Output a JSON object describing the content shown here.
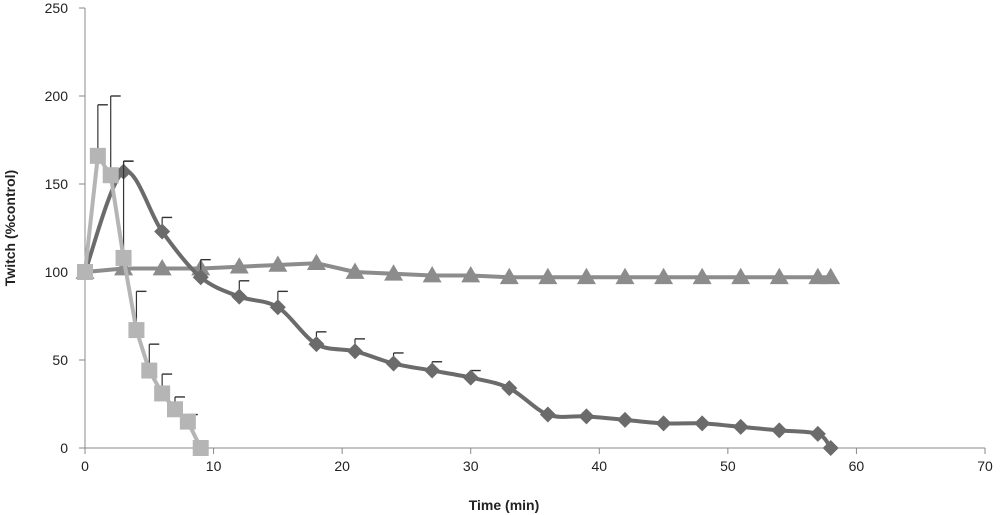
{
  "chart_data": {
    "type": "line",
    "title": "",
    "xlabel": "Time (min)",
    "ylabel": "Twitch (%control)",
    "xlim": [
      0,
      70
    ],
    "ylim": [
      0,
      250
    ],
    "x_ticks": [
      0,
      10,
      20,
      30,
      40,
      50,
      60,
      70
    ],
    "y_ticks": [
      0,
      50,
      100,
      150,
      200,
      250
    ],
    "grid": false,
    "legend": "none",
    "series": [
      {
        "marker": "diamond",
        "color": "#6b6b6b",
        "smooth": true,
        "x": [
          0,
          3,
          6,
          9,
          12,
          15,
          18,
          21,
          24,
          27,
          30,
          33,
          36,
          39,
          42,
          45,
          48,
          51,
          54,
          57,
          58
        ],
        "y": [
          100,
          157,
          123,
          97,
          86,
          80,
          59,
          55,
          48,
          44,
          40,
          34,
          19,
          18,
          16,
          14,
          14,
          12,
          10,
          8,
          0
        ],
        "error": [
          0,
          6,
          8,
          10,
          9,
          9,
          7,
          7,
          6,
          5,
          4,
          0,
          0,
          0,
          0,
          0,
          0,
          0,
          0,
          0,
          0
        ]
      },
      {
        "marker": "triangle",
        "color": "#8c8c8c",
        "smooth": false,
        "x": [
          0,
          3,
          6,
          9,
          12,
          15,
          18,
          21,
          24,
          27,
          30,
          33,
          36,
          39,
          42,
          45,
          48,
          51,
          54,
          57,
          58
        ],
        "y": [
          100,
          102,
          102,
          102,
          103,
          104,
          105,
          100,
          99,
          98,
          98,
          97,
          97,
          97,
          97,
          97,
          97,
          97,
          97,
          97,
          97
        ],
        "error": [
          0,
          0,
          0,
          0,
          0,
          0,
          0,
          0,
          0,
          0,
          0,
          0,
          0,
          0,
          0,
          0,
          0,
          0,
          0,
          0,
          0
        ]
      },
      {
        "marker": "square",
        "color": "#b5b5b5",
        "smooth": false,
        "x": [
          0,
          1,
          2,
          3,
          4,
          5,
          6,
          7,
          8,
          9
        ],
        "y": [
          100,
          166,
          155,
          108,
          67,
          44,
          31,
          22,
          15,
          0
        ],
        "error": [
          0,
          29,
          45,
          55,
          22,
          15,
          11,
          7,
          4,
          0
        ]
      }
    ]
  }
}
